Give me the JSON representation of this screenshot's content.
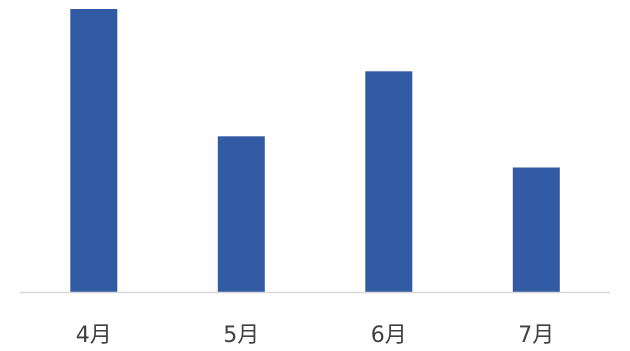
{
  "chart_data": {
    "type": "bar",
    "categories": [
      "4月",
      "5月",
      "6月",
      "7月"
    ],
    "values": [
      100,
      55,
      78,
      44
    ],
    "ylim": [
      0,
      100
    ],
    "grid": false,
    "legend": "none",
    "title": "",
    "xlabel": "",
    "ylabel": "",
    "colors": {
      "bar": "#335BA3",
      "axis": "#D9D9D9",
      "label": "#404040"
    }
  }
}
